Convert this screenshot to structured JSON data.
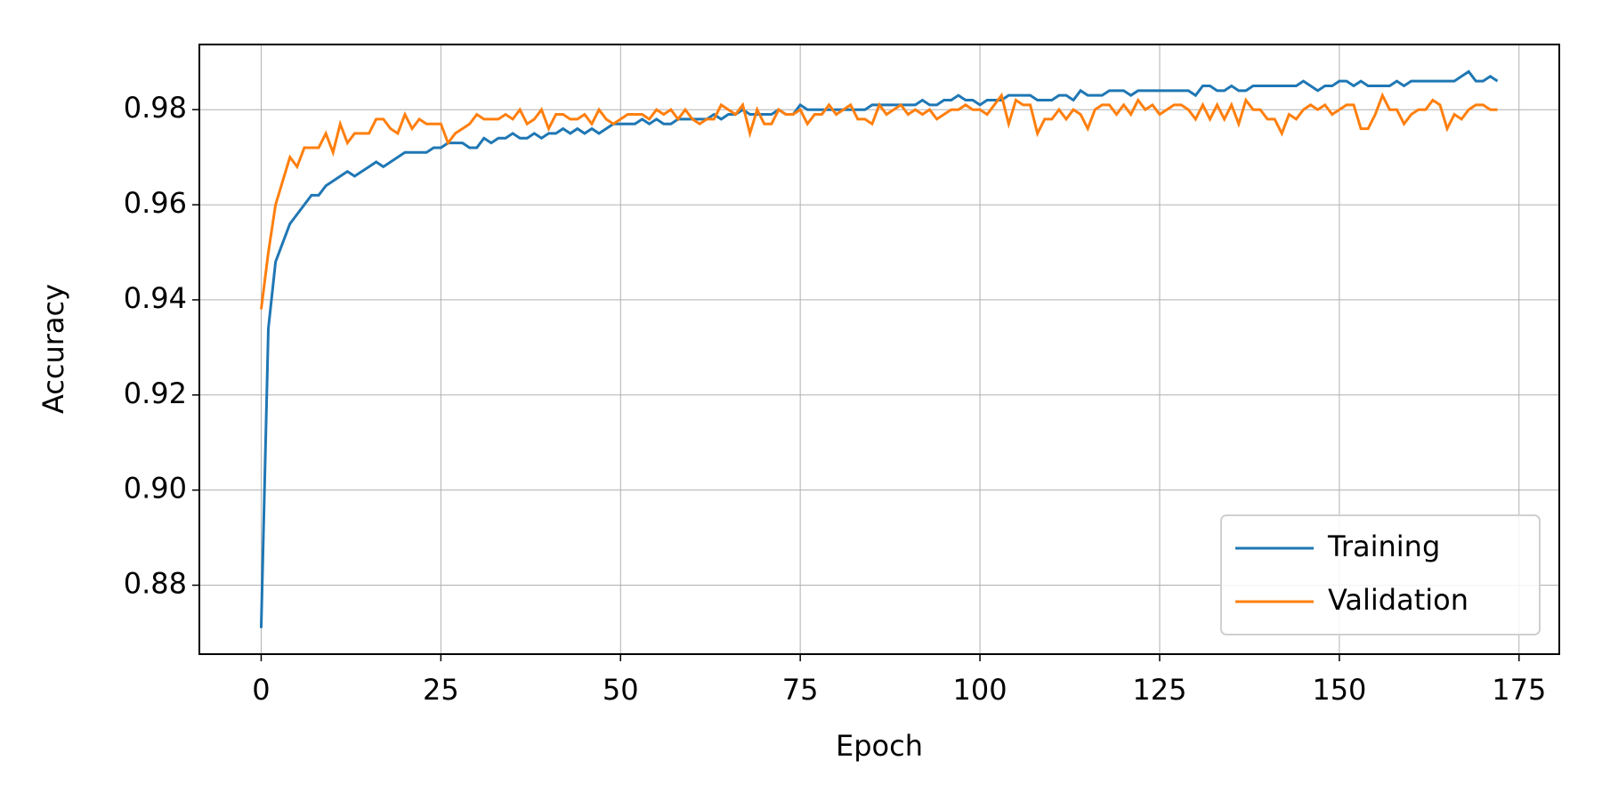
{
  "chart_data": {
    "type": "line",
    "x_label": "Epoch",
    "y_label": "Accuracy",
    "x": [
      0,
      1,
      2,
      3,
      4,
      5,
      6,
      7,
      8,
      9,
      10,
      11,
      12,
      13,
      14,
      15,
      16,
      17,
      18,
      19,
      20,
      21,
      22,
      23,
      24,
      25,
      26,
      27,
      28,
      29,
      30,
      31,
      32,
      33,
      34,
      35,
      36,
      37,
      38,
      39,
      40,
      41,
      42,
      43,
      44,
      45,
      46,
      47,
      48,
      49,
      50,
      51,
      52,
      53,
      54,
      55,
      56,
      57,
      58,
      59,
      60,
      61,
      62,
      63,
      64,
      65,
      66,
      67,
      68,
      69,
      70,
      71,
      72,
      73,
      74,
      75,
      76,
      77,
      78,
      79,
      80,
      81,
      82,
      83,
      84,
      85,
      86,
      87,
      88,
      89,
      90,
      91,
      92,
      93,
      94,
      95,
      96,
      97,
      98,
      99,
      100,
      101,
      102,
      103,
      104,
      105,
      106,
      107,
      108,
      109,
      110,
      111,
      112,
      113,
      114,
      115,
      116,
      117,
      118,
      119,
      120,
      121,
      122,
      123,
      124,
      125,
      126,
      127,
      128,
      129,
      130,
      131,
      132,
      133,
      134,
      135,
      136,
      137,
      138,
      139,
      140,
      141,
      142,
      143,
      144,
      145,
      146,
      147,
      148,
      149,
      150,
      151,
      152,
      153,
      154,
      155,
      156,
      157,
      158,
      159,
      160,
      161,
      162,
      163,
      164,
      165,
      166,
      167,
      168,
      169,
      170,
      171,
      172
    ],
    "series": [
      {
        "name": "Training",
        "color": "#1f77b4",
        "values": [
          0.871,
          0.934,
          0.948,
          0.952,
          0.956,
          0.958,
          0.96,
          0.962,
          0.962,
          0.964,
          0.965,
          0.966,
          0.967,
          0.966,
          0.967,
          0.968,
          0.969,
          0.968,
          0.969,
          0.97,
          0.971,
          0.971,
          0.971,
          0.971,
          0.972,
          0.972,
          0.973,
          0.973,
          0.973,
          0.972,
          0.972,
          0.974,
          0.973,
          0.974,
          0.974,
          0.975,
          0.974,
          0.974,
          0.975,
          0.974,
          0.975,
          0.975,
          0.976,
          0.975,
          0.976,
          0.975,
          0.976,
          0.975,
          0.976,
          0.977,
          0.977,
          0.977,
          0.977,
          0.978,
          0.977,
          0.978,
          0.977,
          0.977,
          0.978,
          0.978,
          0.978,
          0.978,
          0.978,
          0.979,
          0.978,
          0.979,
          0.979,
          0.98,
          0.979,
          0.979,
          0.979,
          0.979,
          0.98,
          0.979,
          0.979,
          0.981,
          0.98,
          0.98,
          0.98,
          0.98,
          0.98,
          0.98,
          0.98,
          0.98,
          0.98,
          0.981,
          0.981,
          0.981,
          0.981,
          0.981,
          0.981,
          0.981,
          0.982,
          0.981,
          0.981,
          0.982,
          0.982,
          0.983,
          0.982,
          0.982,
          0.981,
          0.982,
          0.982,
          0.982,
          0.983,
          0.983,
          0.983,
          0.983,
          0.982,
          0.982,
          0.982,
          0.983,
          0.983,
          0.982,
          0.984,
          0.983,
          0.983,
          0.983,
          0.984,
          0.984,
          0.984,
          0.983,
          0.984,
          0.984,
          0.984,
          0.984,
          0.984,
          0.984,
          0.984,
          0.984,
          0.983,
          0.985,
          0.985,
          0.984,
          0.984,
          0.985,
          0.984,
          0.984,
          0.985,
          0.985,
          0.985,
          0.985,
          0.985,
          0.985,
          0.985,
          0.986,
          0.985,
          0.984,
          0.985,
          0.985,
          0.986,
          0.986,
          0.985,
          0.986,
          0.985,
          0.985,
          0.985,
          0.985,
          0.986,
          0.985,
          0.986,
          0.986,
          0.986,
          0.986,
          0.986,
          0.986,
          0.986,
          0.987,
          0.988,
          0.986,
          0.986,
          0.987,
          0.986
        ]
      },
      {
        "name": "Validation",
        "color": "#ff7f0e",
        "values": [
          0.938,
          0.95,
          0.96,
          0.965,
          0.97,
          0.968,
          0.972,
          0.972,
          0.972,
          0.975,
          0.971,
          0.977,
          0.973,
          0.975,
          0.975,
          0.975,
          0.978,
          0.978,
          0.976,
          0.975,
          0.979,
          0.976,
          0.978,
          0.977,
          0.977,
          0.977,
          0.973,
          0.975,
          0.976,
          0.977,
          0.979,
          0.978,
          0.978,
          0.978,
          0.979,
          0.978,
          0.98,
          0.977,
          0.978,
          0.98,
          0.976,
          0.979,
          0.979,
          0.978,
          0.978,
          0.979,
          0.977,
          0.98,
          0.978,
          0.977,
          0.978,
          0.979,
          0.979,
          0.979,
          0.978,
          0.98,
          0.979,
          0.98,
          0.978,
          0.98,
          0.978,
          0.977,
          0.978,
          0.978,
          0.981,
          0.98,
          0.979,
          0.981,
          0.975,
          0.98,
          0.977,
          0.977,
          0.98,
          0.979,
          0.979,
          0.98,
          0.977,
          0.979,
          0.979,
          0.981,
          0.979,
          0.98,
          0.981,
          0.978,
          0.978,
          0.977,
          0.981,
          0.979,
          0.98,
          0.981,
          0.979,
          0.98,
          0.979,
          0.98,
          0.978,
          0.979,
          0.98,
          0.98,
          0.981,
          0.98,
          0.98,
          0.979,
          0.981,
          0.983,
          0.977,
          0.982,
          0.981,
          0.981,
          0.975,
          0.978,
          0.978,
          0.98,
          0.978,
          0.98,
          0.979,
          0.976,
          0.98,
          0.981,
          0.981,
          0.979,
          0.981,
          0.979,
          0.982,
          0.98,
          0.981,
          0.979,
          0.98,
          0.981,
          0.981,
          0.98,
          0.978,
          0.981,
          0.978,
          0.981,
          0.978,
          0.981,
          0.977,
          0.982,
          0.98,
          0.98,
          0.978,
          0.978,
          0.975,
          0.979,
          0.978,
          0.98,
          0.981,
          0.98,
          0.981,
          0.979,
          0.98,
          0.981,
          0.981,
          0.976,
          0.976,
          0.979,
          0.983,
          0.98,
          0.98,
          0.977,
          0.979,
          0.98,
          0.98,
          0.982,
          0.981,
          0.976,
          0.979,
          0.978,
          0.98,
          0.981,
          0.981,
          0.98,
          0.98
        ]
      }
    ],
    "xlim": [
      -8.6,
      180.6
    ],
    "ylim": [
      0.8655,
      0.9937
    ],
    "xticks": [
      0,
      25,
      50,
      75,
      100,
      125,
      150,
      175
    ],
    "yticks": [
      0.88,
      {
        "value": 0.9,
        "label": "0.90"
      },
      0.92,
      0.94,
      0.96,
      0.98
    ],
    "grid": true,
    "legend": "lower right"
  }
}
